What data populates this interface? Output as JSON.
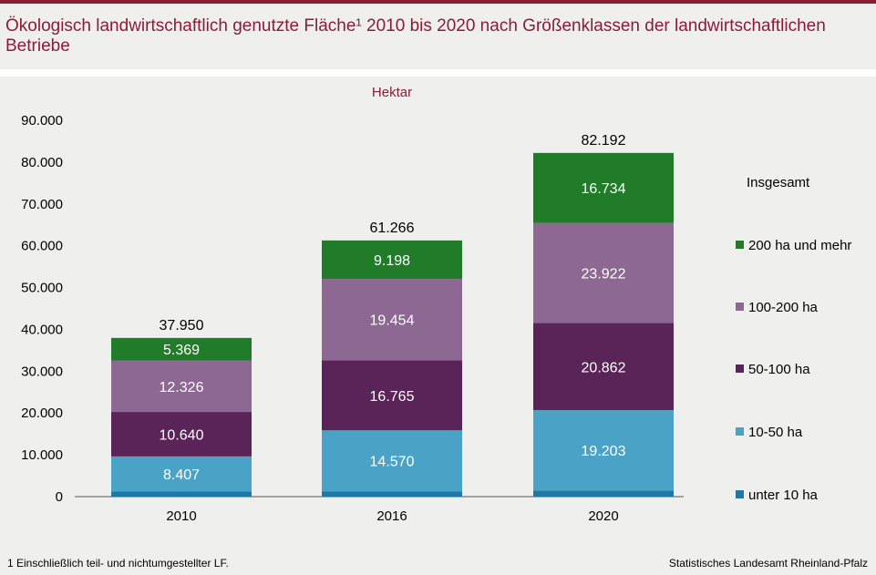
{
  "title": "Ökologisch landwirtschaftlich genutzte Fläche¹ 2010 bis 2020 nach Größenklassen der landwirtschaftlichen Betriebe",
  "footnote": "1 Einschließlich teil- und nichtumgestellter LF.",
  "source": "Statistisches Landesamt Rheinland-Pfalz",
  "colors": {
    "brand": "#8c1c35",
    "unter_10": "#1f79a8",
    "10_50": "#4aa3c7",
    "50_100": "#5a2458",
    "100_200": "#8c6893",
    "200_plus": "#217c29"
  },
  "chart_data": {
    "type": "bar",
    "stacked": true,
    "ylabel": "Hektar",
    "categories": [
      "2010",
      "2016",
      "2020"
    ],
    "ylim": [
      0,
      90000
    ],
    "yticks": [
      "0",
      "10.000",
      "20.000",
      "30.000",
      "40.000",
      "50.000",
      "60.000",
      "70.000",
      "80.000",
      "90.000"
    ],
    "totals_label": "Insgesamt",
    "totals": [
      {
        "value": 37950,
        "label": "37.950"
      },
      {
        "value": 61266,
        "label": "61.266"
      },
      {
        "value": 82192,
        "label": "82.192"
      }
    ],
    "legend_position": "right",
    "series": [
      {
        "name": "unter 10 ha",
        "color": "#1f79a8",
        "values": [
          1208,
          1279,
          1471
        ],
        "labels": [
          "",
          "",
          ""
        ]
      },
      {
        "name": "10-50 ha",
        "color": "#4aa3c7",
        "values": [
          8407,
          14570,
          19203
        ],
        "labels": [
          "8.407",
          "14.570",
          "19.203"
        ]
      },
      {
        "name": "50-100 ha",
        "color": "#5a2458",
        "values": [
          10640,
          16765,
          20862
        ],
        "labels": [
          "10.640",
          "16.765",
          "20.862"
        ]
      },
      {
        "name": "100-200 ha",
        "color": "#8c6893",
        "values": [
          12326,
          19454,
          23922
        ],
        "labels": [
          "12.326",
          "19.454",
          "23.922"
        ]
      },
      {
        "name": "200 ha und mehr",
        "color": "#217c29",
        "values": [
          5369,
          9198,
          16734
        ],
        "labels": [
          "5.369",
          "9.198",
          "16.734"
        ]
      }
    ]
  }
}
